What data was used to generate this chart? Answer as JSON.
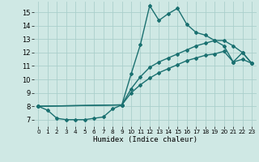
{
  "xlabel": "Humidex (Indice chaleur)",
  "xlim": [
    -0.5,
    23.5
  ],
  "ylim": [
    6.5,
    15.8
  ],
  "yticks": [
    7,
    8,
    9,
    10,
    11,
    12,
    13,
    14,
    15
  ],
  "xticks": [
    0,
    1,
    2,
    3,
    4,
    5,
    6,
    7,
    8,
    9,
    10,
    11,
    12,
    13,
    14,
    15,
    16,
    17,
    18,
    19,
    20,
    21,
    22,
    23
  ],
  "bg_color": "#cfe8e4",
  "grid_color": "#aacfcc",
  "line_color": "#1a7070",
  "line1_x": [
    0,
    1,
    2,
    3,
    4,
    5,
    6,
    7,
    8,
    9,
    10,
    11,
    12,
    13,
    14,
    15,
    16,
    17,
    18,
    19,
    20,
    21,
    22,
    23
  ],
  "line1_y": [
    8.0,
    7.7,
    7.1,
    7.0,
    7.0,
    7.0,
    7.1,
    7.2,
    7.8,
    8.1,
    10.4,
    12.6,
    15.5,
    14.4,
    14.9,
    15.3,
    14.1,
    13.5,
    13.3,
    12.9,
    12.5,
    11.3,
    12.0,
    11.2
  ],
  "line2_x": [
    0,
    9,
    10,
    11,
    12,
    13,
    14,
    15,
    16,
    17,
    18,
    19,
    20,
    21,
    22,
    23
  ],
  "line2_y": [
    8.0,
    8.1,
    9.3,
    10.2,
    10.9,
    11.3,
    11.6,
    11.9,
    12.2,
    12.5,
    12.7,
    12.9,
    12.9,
    12.5,
    12.0,
    11.2
  ],
  "line3_x": [
    0,
    9,
    10,
    11,
    12,
    13,
    14,
    15,
    16,
    17,
    18,
    19,
    20,
    21,
    22,
    23
  ],
  "line3_y": [
    8.0,
    8.1,
    9.0,
    9.6,
    10.1,
    10.5,
    10.8,
    11.1,
    11.4,
    11.6,
    11.8,
    11.9,
    12.1,
    11.3,
    11.5,
    11.2
  ],
  "marker": "D",
  "marker_size": 2.0,
  "line_width": 1.0,
  "xlabel_fontsize": 6.5,
  "tick_fontsize": 6,
  "xtick_fontsize": 5.2
}
